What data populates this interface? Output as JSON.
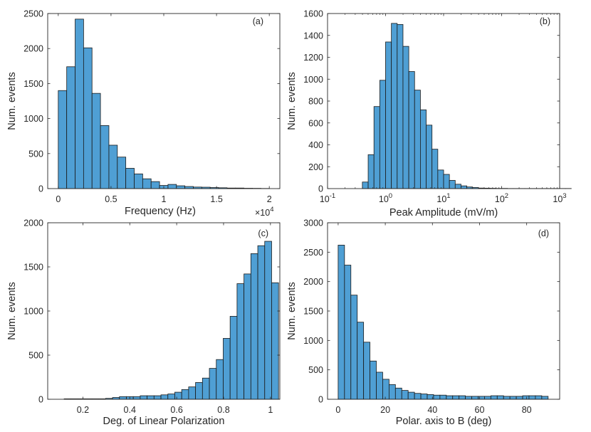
{
  "figure": {
    "bar_color": "#4f9fd4",
    "edge_color": "#1a1a1a",
    "axis_color": "#262626"
  },
  "chart_data": [
    {
      "type": "bar",
      "panel_label": "(a)",
      "xlabel": "Frequency (Hz)",
      "ylabel": "Num. events",
      "x_exponent_label": "×10",
      "x_exponent": "4",
      "xlim": [
        -1000,
        21000
      ],
      "ylim": [
        0,
        2500
      ],
      "xticks": [
        0,
        5000,
        10000,
        15000,
        20000
      ],
      "xtick_labels": [
        "0",
        "0.5",
        "1",
        "1.5",
        "2"
      ],
      "yticks": [
        0,
        500,
        1000,
        1500,
        2000,
        2500
      ],
      "ytick_labels": [
        "0",
        "500",
        "1000",
        "1500",
        "2000",
        "2500"
      ],
      "bin_edges_start": 0,
      "bin_width": 800,
      "values": [
        1400,
        1740,
        2420,
        2010,
        1360,
        900,
        620,
        450,
        290,
        210,
        140,
        100,
        45,
        60,
        40,
        30,
        22,
        20,
        15,
        12,
        8,
        8,
        5,
        4,
        2
      ]
    },
    {
      "type": "bar",
      "panel_label": "(b)",
      "xlabel": "Peak Amplitude (mV/m)",
      "ylabel": "Num. events",
      "xscale": "log",
      "xlim_log10": [
        -1,
        3
      ],
      "ylim": [
        0,
        1600
      ],
      "xticks_log10": [
        -1,
        0,
        1,
        2,
        3
      ],
      "xtick_base": "10",
      "xtick_exponents": [
        "-1",
        "0",
        "1",
        "2",
        "3"
      ],
      "yticks": [
        0,
        200,
        400,
        600,
        800,
        1000,
        1200,
        1400,
        1600
      ],
      "ytick_labels": [
        "0",
        "200",
        "400",
        "600",
        "800",
        "1000",
        "1200",
        "1400",
        "1600"
      ],
      "bin_edges_start_log10": -0.4,
      "bin_width_log10": 0.1,
      "values": [
        60,
        310,
        750,
        990,
        1340,
        1510,
        1500,
        1300,
        1070,
        900,
        720,
        580,
        360,
        170,
        130,
        75,
        40,
        25,
        15,
        10,
        5,
        4,
        3,
        2,
        2,
        1,
        1,
        1,
        1,
        1,
        1,
        1,
        1,
        1,
        1,
        1
      ]
    },
    {
      "type": "bar",
      "panel_label": "(c)",
      "xlabel": "Deg. of Linear Polarization",
      "ylabel": "Num. events",
      "xlim": [
        0.05,
        1.04
      ],
      "ylim": [
        0,
        2000
      ],
      "xticks": [
        0.2,
        0.4,
        0.6,
        0.8,
        1.0
      ],
      "xtick_labels": [
        "0.2",
        "0.4",
        "0.6",
        "0.8",
        "1"
      ],
      "yticks": [
        0,
        500,
        1000,
        1500,
        2000
      ],
      "ytick_labels": [
        "0",
        "500",
        "1000",
        "1500",
        "2000"
      ],
      "bin_edges_start": 0.12,
      "bin_width": 0.0295,
      "values": [
        5,
        5,
        5,
        5,
        5,
        5,
        10,
        20,
        30,
        30,
        30,
        40,
        40,
        40,
        50,
        60,
        80,
        110,
        140,
        190,
        240,
        350,
        450,
        690,
        940,
        1310,
        1420,
        1650,
        1740,
        1790,
        1320
      ]
    },
    {
      "type": "bar",
      "panel_label": "(d)",
      "xlabel": "Polar. axis to B (deg)",
      "ylabel": "Num. events",
      "xlim": [
        -4.5,
        94
      ],
      "ylim": [
        0,
        3000
      ],
      "xticks": [
        0,
        20,
        40,
        60,
        80
      ],
      "xtick_labels": [
        "0",
        "20",
        "40",
        "60",
        "80"
      ],
      "yticks": [
        0,
        500,
        1000,
        1500,
        2000,
        2500,
        3000
      ],
      "ytick_labels": [
        "0",
        "500",
        "1000",
        "1500",
        "2000",
        "2500",
        "3000"
      ],
      "bin_edges_start": 0,
      "bin_width": 2.7,
      "values": [
        2620,
        2280,
        1770,
        1310,
        970,
        650,
        460,
        340,
        250,
        190,
        150,
        120,
        100,
        90,
        80,
        70,
        70,
        60,
        60,
        60,
        50,
        50,
        50,
        50,
        60,
        60,
        50,
        50,
        50,
        60,
        60,
        60,
        50
      ]
    }
  ]
}
